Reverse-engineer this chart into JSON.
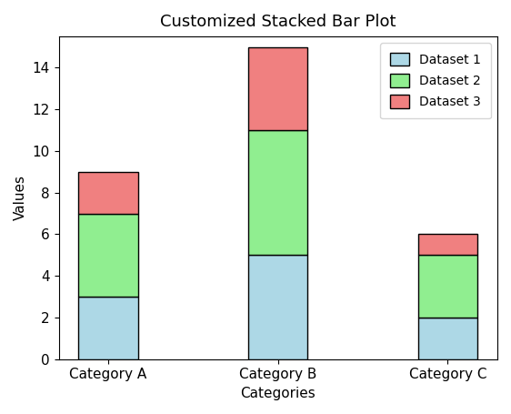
{
  "categories": [
    "Category A",
    "Category B",
    "Category C"
  ],
  "dataset1": [
    3,
    5,
    2
  ],
  "dataset2": [
    4,
    6,
    3
  ],
  "dataset3": [
    2,
    4,
    1
  ],
  "color1": "#add8e6",
  "color2": "#90ee90",
  "color3": "#f08080",
  "edgecolor": "black",
  "title": "Customized Stacked Bar Plot",
  "xlabel": "Categories",
  "ylabel": "Values",
  "legend_labels": [
    "Dataset 1",
    "Dataset 2",
    "Dataset 3"
  ],
  "ylim": [
    0,
    15.5
  ],
  "bar_width": 0.35,
  "title_fontsize": 13,
  "label_fontsize": 11,
  "tick_fontsize": 11,
  "legend_fontsize": 10
}
